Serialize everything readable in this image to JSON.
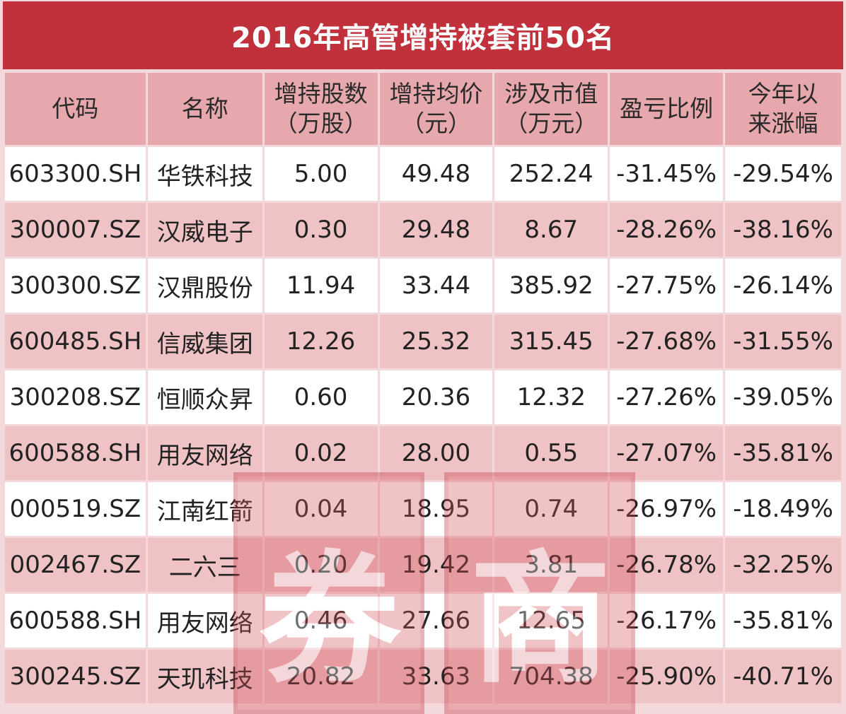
{
  "title": "2016年高管增持被套前50名",
  "headers": [
    {
      "line1": "代码",
      "line2": ""
    },
    {
      "line1": "名称",
      "line2": ""
    },
    {
      "line1": "增持股数",
      "line2": "（万股）"
    },
    {
      "line1": "增持均价",
      "line2": "（元）"
    },
    {
      "line1": "涉及市值",
      "line2": "（万元）"
    },
    {
      "line1": "盈亏比例",
      "line2": ""
    },
    {
      "line1": "今年以",
      "line2": "来涨幅"
    }
  ],
  "rows": [
    {
      "code": "603300.SH",
      "name": "华铁科技",
      "shares": "5.00",
      "price": "49.48",
      "value": "252.24",
      "pl": "-31.45%",
      "ytd": "-29.54%"
    },
    {
      "code": "300007.SZ",
      "name": "汉威电子",
      "shares": "0.30",
      "price": "29.48",
      "value": "8.67",
      "pl": "-28.26%",
      "ytd": "-38.16%"
    },
    {
      "code": "300300.SZ",
      "name": "汉鼎股份",
      "shares": "11.94",
      "price": "33.44",
      "value": "385.92",
      "pl": "-27.75%",
      "ytd": "-26.14%"
    },
    {
      "code": "600485.SH",
      "name": "信威集团",
      "shares": "12.26",
      "price": "25.32",
      "value": "315.45",
      "pl": "-27.68%",
      "ytd": "-31.55%"
    },
    {
      "code": "300208.SZ",
      "name": "恒顺众昇",
      "shares": "0.60",
      "price": "20.36",
      "value": "12.32",
      "pl": "-27.26%",
      "ytd": "-39.05%"
    },
    {
      "code": "600588.SH",
      "name": "用友网络",
      "shares": "0.02",
      "price": "28.00",
      "value": "0.55",
      "pl": "-27.07%",
      "ytd": "-35.81%"
    },
    {
      "code": "000519.SZ",
      "name": "江南红箭",
      "shares": "0.04",
      "price": "18.95",
      "value": "0.74",
      "pl": "-26.97%",
      "ytd": "-18.49%"
    },
    {
      "code": "002467.SZ",
      "name": "二六三",
      "shares": "0.20",
      "price": "19.42",
      "value": "3.81",
      "pl": "-26.78%",
      "ytd": "-32.25%"
    },
    {
      "code": "600588.SH",
      "name": "用友网络",
      "shares": "0.46",
      "price": "27.66",
      "value": "12.65",
      "pl": "-26.17%",
      "ytd": "-35.81%"
    },
    {
      "code": "300245.SZ",
      "name": "天玑科技",
      "shares": "20.82",
      "price": "33.63",
      "value": "704.38",
      "pl": "-25.90%",
      "ytd": "-40.71%"
    }
  ],
  "watermark": {
    "glyph_left": "券",
    "glyph_right": "商"
  },
  "colors": {
    "title_bg": "#c0313b",
    "header_bg": "#e6a7ad",
    "row_even": "#efc2c6",
    "row_odd": "#ffffff"
  }
}
